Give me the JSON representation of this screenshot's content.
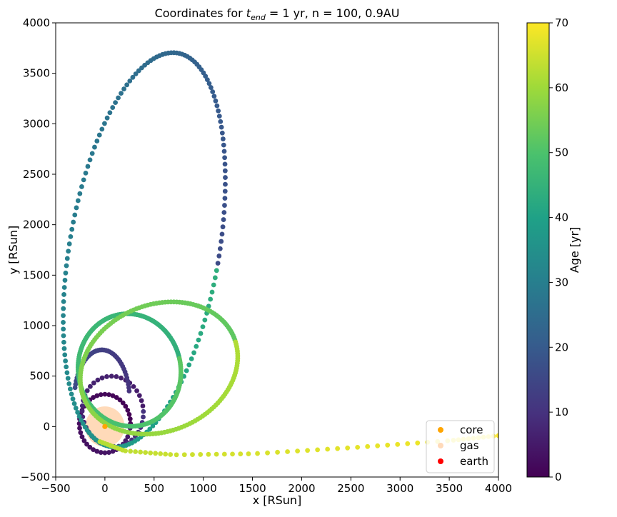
{
  "chart_data": {
    "type": "scatter",
    "title_main": "Coordinates for ",
    "title_sym": "t",
    "title_sub": "end",
    "title_rest": " = 1 yr, n = 100, 0.9AU",
    "xlabel": "x [RSun]",
    "ylabel": "y [RSun]",
    "xlim": [
      -500,
      4000
    ],
    "ylim": [
      -500,
      4000
    ],
    "xticks": [
      "−500",
      "0",
      "500",
      "1000",
      "1500",
      "2000",
      "2500",
      "3000",
      "3500",
      "4000"
    ],
    "yticks": [
      "−500",
      "0",
      "500",
      "1000",
      "1500",
      "2000",
      "2500",
      "3000",
      "3500",
      "4000"
    ],
    "colorbar": {
      "label": "Age [yr]",
      "range": [
        0,
        70
      ],
      "ticks": [
        "0",
        "10",
        "20",
        "30",
        "40",
        "50",
        "60",
        "70"
      ],
      "colormap": "viridis"
    },
    "gas": {
      "cx": 0,
      "cy": 0,
      "radius": 200,
      "color": "#ffdab9"
    },
    "core": {
      "x": 0,
      "y": 0,
      "color": "#ffa500"
    },
    "legend": {
      "placement": "bottom-right",
      "entries": [
        {
          "label": "core",
          "color": "#ffa500"
        },
        {
          "label": "gas",
          "color": "#ffdab9"
        },
        {
          "label": "earth",
          "color": "#ff0000"
        }
      ]
    },
    "trajectory_segments": [
      {
        "age_from": 0,
        "age_to": 5,
        "kind": "loop",
        "center": [
          0,
          30
        ],
        "rx": 260,
        "ry": 290,
        "tilt": 0
      },
      {
        "age_from": 5,
        "age_to": 10,
        "kind": "loop",
        "center": [
          80,
          150
        ],
        "rx": 310,
        "ry": 350,
        "tilt": 10
      },
      {
        "age_from": 10,
        "age_to": 16,
        "kind": "arc",
        "center": [
          -30,
          280
        ],
        "rx": 280,
        "ry": 480,
        "tilt": 0
      },
      {
        "age_from": 16,
        "age_to": 44,
        "kind": "ellipse",
        "center": [
          400,
          1750
        ],
        "rx": 760,
        "ry": 1980,
        "tilt": -10
      },
      {
        "age_from": 44,
        "age_to": 52,
        "kind": "ellipse",
        "center": [
          250,
          560
        ],
        "rx": 520,
        "ry": 560,
        "tilt": 15
      },
      {
        "age_from": 52,
        "age_to": 62,
        "kind": "ellipse",
        "center": [
          550,
          580
        ],
        "rx": 820,
        "ry": 630,
        "tilt": 20
      },
      {
        "age_from": 62,
        "age_to": 70,
        "kind": "tail",
        "points": [
          [
            -50,
            -150
          ],
          [
            200,
            -240
          ],
          [
            700,
            -280
          ],
          [
            1500,
            -270
          ],
          [
            2500,
            -210
          ],
          [
            3500,
            -140
          ],
          [
            4000,
            -90
          ]
        ]
      }
    ]
  }
}
